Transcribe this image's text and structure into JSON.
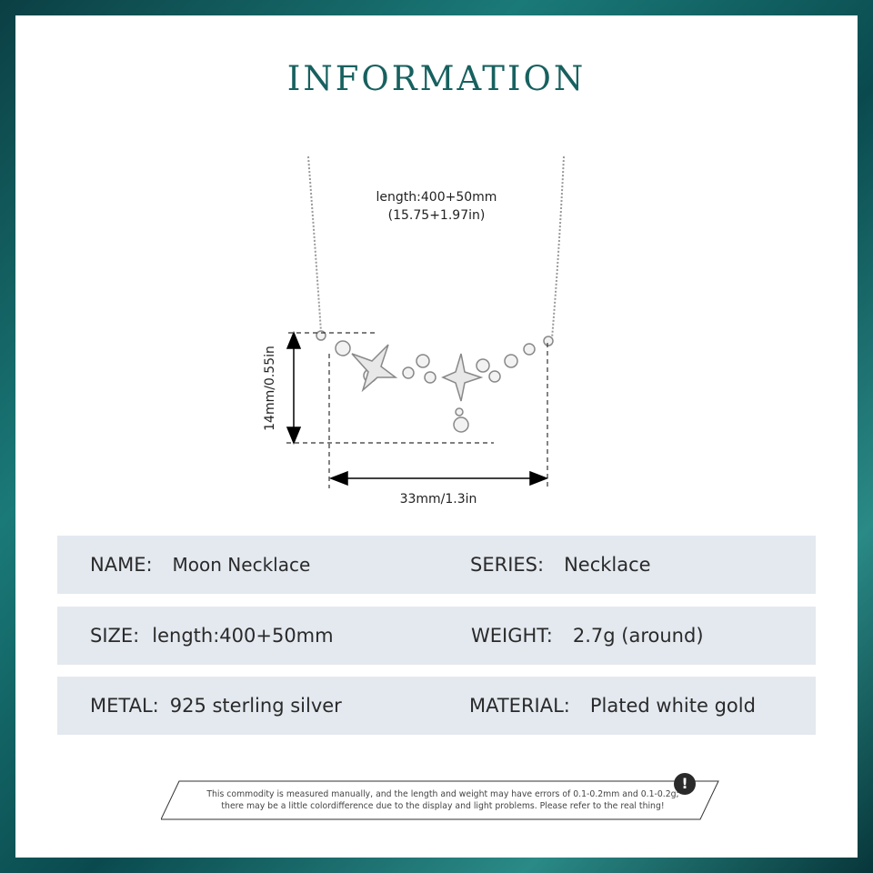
{
  "title": "INFORMATION",
  "dimensions": {
    "length": "length:400+50mm",
    "length_in": "(15.75+1.97in)",
    "height": "14mm/0.55in",
    "width": "33mm/1.3in"
  },
  "specs": [
    {
      "left_key": "NAME:",
      "left_val": "Moon Necklace",
      "right_key": "SERIES:",
      "right_val": "Necklace"
    },
    {
      "left_key": "SIZE:",
      "left_val": "length:400+50mm",
      "right_key": "WEIGHT:",
      "right_val": "2.7g (around)"
    },
    {
      "left_key": "METAL:",
      "left_val": "925 sterling silver",
      "right_key": "MATERIAL:",
      "right_val": "Plated white gold"
    }
  ],
  "note": {
    "line1": "This commodity is measured manually, and the length and weight may have errors of 0.1-0.2mm and 0.1-0.2g;",
    "line2": "there may be a little colordifference due to the display and light problems. Please refer to the real thing!",
    "icon": "exclamation-icon"
  },
  "colors": {
    "title": "#17615f",
    "row_bg": "#e4e9f0",
    "border": "#0e5a5a"
  }
}
